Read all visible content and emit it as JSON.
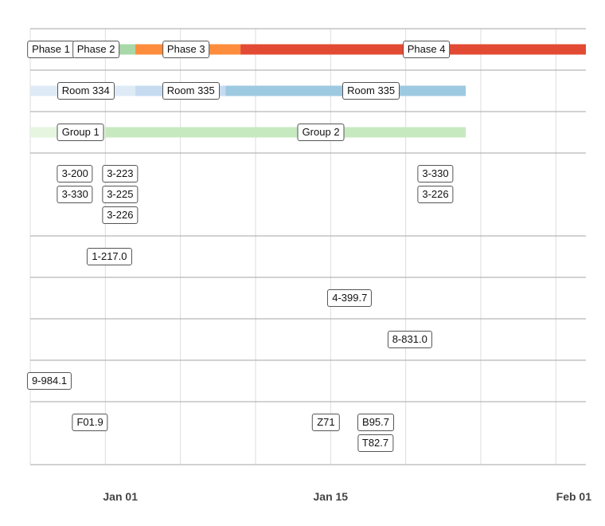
{
  "chart_data": {
    "type": "timeline",
    "x_axis": {
      "start": "2023-12-26",
      "end": "2024-02-01",
      "ticks": [
        {
          "date": "2024-01-01",
          "label": "Jan 01"
        },
        {
          "date": "2024-01-15",
          "label": "Jan 15"
        },
        {
          "date": "2024-02-01",
          "label": "Feb 01"
        }
      ],
      "grid": true
    },
    "lanes": [
      {
        "bars": [
          {
            "start": "2023-12-26",
            "end": "2023-12-30",
            "color": "#ffffff"
          },
          {
            "start": "2023-12-30",
            "end": "2024-01-02",
            "color": "#a8d8a8"
          },
          {
            "start": "2024-01-02",
            "end": "2024-01-09",
            "color": "#fd8d3c"
          },
          {
            "start": "2024-01-09",
            "end": "2024-02-01",
            "color": "#e34a33"
          }
        ],
        "labels": [
          {
            "text": "Phase 1",
            "date": "2023-12-26"
          },
          {
            "text": "Phase 2",
            "date": "2023-12-29"
          },
          {
            "text": "Phase 3",
            "date": "2024-01-04"
          },
          {
            "text": "Phase 4",
            "date": "2024-01-20"
          }
        ]
      },
      {
        "bars": [
          {
            "start": "2023-12-26",
            "end": "2024-01-02",
            "color": "#deebf7"
          },
          {
            "start": "2024-01-02",
            "end": "2024-01-08",
            "color": "#c6dbef"
          },
          {
            "start": "2024-01-08",
            "end": "2024-01-24",
            "color": "#9ecae1"
          }
        ],
        "labels": [
          {
            "text": "Room 334",
            "date": "2023-12-28"
          },
          {
            "text": "Room 335",
            "date": "2024-01-04"
          },
          {
            "text": "Room 335",
            "date": "2024-01-16"
          }
        ]
      },
      {
        "bars": [
          {
            "start": "2023-12-26",
            "end": "2023-12-31",
            "color": "#e5f5e0"
          },
          {
            "start": "2023-12-31",
            "end": "2024-01-24",
            "color": "#c7e9c0"
          }
        ],
        "labels": [
          {
            "text": "Group 1",
            "date": "2023-12-28"
          },
          {
            "text": "Group 2",
            "date": "2024-01-13"
          }
        ]
      },
      {
        "label_rows": 3,
        "labels": [
          {
            "text": "3-200",
            "date": "2023-12-28",
            "row": 0
          },
          {
            "text": "3-223",
            "date": "2023-12-31",
            "row": 0
          },
          {
            "text": "3-330",
            "date": "2024-01-21",
            "row": 0
          },
          {
            "text": "3-330",
            "date": "2023-12-28",
            "row": 1
          },
          {
            "text": "3-225",
            "date": "2023-12-31",
            "row": 1
          },
          {
            "text": "3-226",
            "date": "2024-01-21",
            "row": 1
          },
          {
            "text": "3-226",
            "date": "2023-12-31",
            "row": 2
          }
        ]
      },
      {
        "labels": [
          {
            "text": "1-217.0",
            "date": "2023-12-30"
          }
        ]
      },
      {
        "labels": [
          {
            "text": "4-399.7",
            "date": "2024-01-15"
          }
        ]
      },
      {
        "labels": [
          {
            "text": "8-831.0",
            "date": "2024-01-19"
          }
        ]
      },
      {
        "labels": [
          {
            "text": "9-984.1",
            "date": "2023-12-26"
          }
        ]
      },
      {
        "label_rows": 2,
        "labels": [
          {
            "text": "F01.9",
            "date": "2023-12-29",
            "row": 0
          },
          {
            "text": "Z71",
            "date": "2024-01-14",
            "row": 0
          },
          {
            "text": "B95.7",
            "date": "2024-01-17",
            "row": 0
          },
          {
            "text": "T82.7",
            "date": "2024-01-17",
            "row": 1
          }
        ]
      }
    ]
  }
}
